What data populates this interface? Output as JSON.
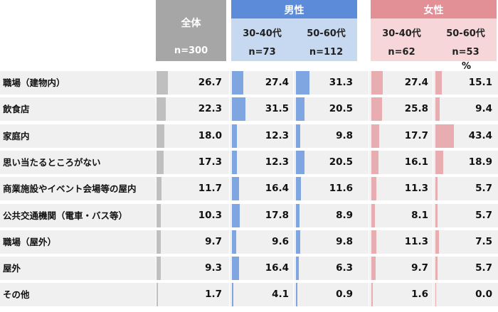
{
  "chart_data": {
    "type": "bar",
    "unit": "%",
    "categories": [
      "職場（建物内）",
      "飲食店",
      "家庭内",
      "思い当たるところがない",
      "商業施設やイベント会場等の屋内",
      "公共交通機関（電車・バス等）",
      "職場（屋外）",
      "屋外",
      "その他"
    ],
    "groups": [
      {
        "name": "全体",
        "columns": [
          {
            "label": "",
            "n": "n=300",
            "values": [
              26.7,
              22.3,
              18.0,
              17.3,
              11.7,
              10.3,
              9.7,
              9.3,
              1.7
            ]
          }
        ]
      },
      {
        "name": "男性",
        "columns": [
          {
            "label": "30-40代",
            "n": "n=73",
            "values": [
              27.4,
              31.5,
              12.3,
              12.3,
              16.4,
              17.8,
              9.6,
              16.4,
              4.1
            ]
          },
          {
            "label": "50-60代",
            "n": "n=112",
            "values": [
              31.3,
              20.5,
              9.8,
              20.5,
              11.6,
              8.9,
              9.8,
              6.3,
              0.9
            ]
          }
        ]
      },
      {
        "name": "女性",
        "columns": [
          {
            "label": "30-40代",
            "n": "n=62",
            "values": [
              27.4,
              25.8,
              17.7,
              16.1,
              11.3,
              8.1,
              11.3,
              9.7,
              1.6
            ]
          },
          {
            "label": "50-60代",
            "n": "n=53",
            "values": [
              15.1,
              9.4,
              43.4,
              18.9,
              5.7,
              5.7,
              7.5,
              5.7,
              0.0
            ]
          }
        ]
      }
    ]
  },
  "colors": {
    "overall_header": "#a6a6a6",
    "overall_bar": "#bfbfbf",
    "male_header": "#5b8bd9",
    "male_sub": "#c7d8f1",
    "male_bar": "#7fa6e0",
    "female_header": "#e28f95",
    "female_sub": "#f6d6d8",
    "female_bar": "#e8adb1",
    "row_bg": "#f0f0f0"
  }
}
